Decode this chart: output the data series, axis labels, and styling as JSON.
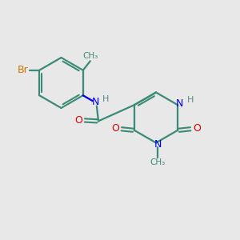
{
  "bg_color": "#e8e8e8",
  "bond_color": "#3a8a75",
  "n_color": "#0000ee",
  "o_color": "#dd0000",
  "br_color": "#cc7700",
  "h_color": "#5a8888",
  "lw": 1.6,
  "dlw": 1.5,
  "fs": 9.0,
  "fss": 8.0,
  "figsize": [
    3.0,
    3.0
  ],
  "dpi": 100,
  "xlim": [
    0,
    10
  ],
  "ylim": [
    0,
    10
  ]
}
